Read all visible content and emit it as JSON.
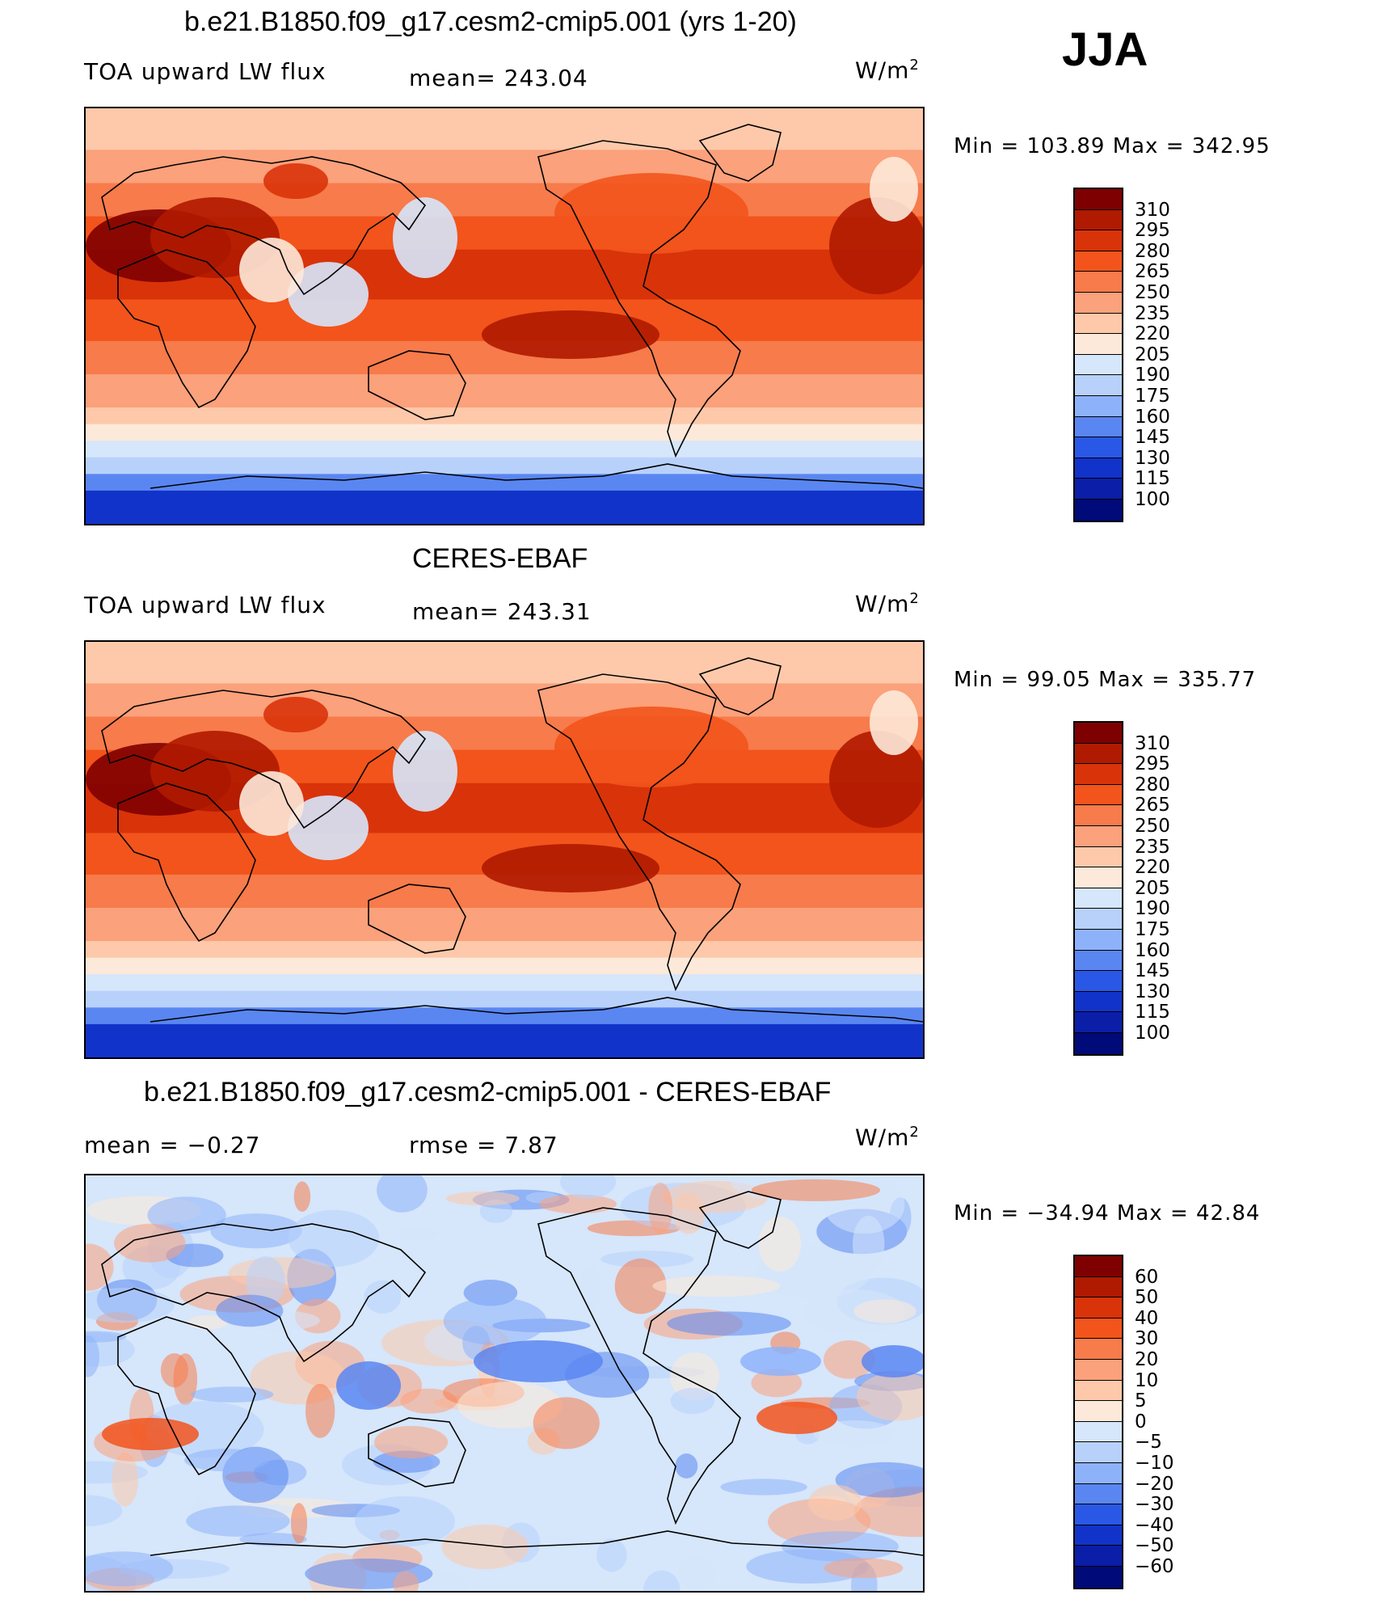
{
  "season": "JJA",
  "panels": [
    {
      "title": "b.e21.B1850.f09_g17.cesm2-cmip5.001 (yrs 1-20)",
      "left_label": "TOA upward LW flux",
      "center_label": "mean= 243.04",
      "unit": "W/m",
      "unit_sup": "2",
      "minmax": "Min  =  103.89  Max  =  342.95",
      "colorbar": {
        "labels": [
          "310",
          "295",
          "280",
          "265",
          "250",
          "235",
          "220",
          "205",
          "190",
          "175",
          "160",
          "145",
          "130",
          "115",
          "100"
        ],
        "colors": [
          "#7f0000",
          "#b01a00",
          "#d9330a",
          "#f2541c",
          "#f77b4b",
          "#fba17b",
          "#fdc9aa",
          "#fde9d9",
          "#d6e6fb",
          "#b8d1fb",
          "#8eb2fa",
          "#5a86f1",
          "#2a58e6",
          "#1233c9",
          "#0a1ea8",
          "#000a78"
        ]
      },
      "map_style": "abs"
    },
    {
      "title": "CERES-EBAF",
      "left_label": "TOA upward LW flux",
      "center_label": "mean= 243.31",
      "unit": "W/m",
      "unit_sup": "2",
      "minmax": "Min  =    99.05  Max  =  335.77",
      "colorbar": {
        "labels": [
          "310",
          "295",
          "280",
          "265",
          "250",
          "235",
          "220",
          "205",
          "190",
          "175",
          "160",
          "145",
          "130",
          "115",
          "100"
        ],
        "colors": [
          "#7f0000",
          "#b01a00",
          "#d9330a",
          "#f2541c",
          "#f77b4b",
          "#fba17b",
          "#fdc9aa",
          "#fde9d9",
          "#d6e6fb",
          "#b8d1fb",
          "#8eb2fa",
          "#5a86f1",
          "#2a58e6",
          "#1233c9",
          "#0a1ea8",
          "#000a78"
        ]
      },
      "map_style": "abs"
    },
    {
      "title": "b.e21.B1850.f09_g17.cesm2-cmip5.001 - CERES-EBAF",
      "left_label": "mean  =    −0.27",
      "center_label": "rmse  =      7.87",
      "unit": "W/m",
      "unit_sup": "2",
      "minmax": "Min  =  −34.94  Max  =    42.84",
      "colorbar": {
        "labels": [
          "60",
          "50",
          "40",
          "30",
          "20",
          "10",
          "5",
          "0",
          "−5",
          "−10",
          "−20",
          "−30",
          "−40",
          "−50",
          "−60"
        ],
        "colors": [
          "#7f0000",
          "#b01a00",
          "#d9330a",
          "#f2541c",
          "#f77b4b",
          "#fba17b",
          "#fdc9aa",
          "#fde9d9",
          "#d6e6fb",
          "#b8d1fb",
          "#8eb2fa",
          "#5a86f1",
          "#2a58e6",
          "#1233c9",
          "#0a1ea8",
          "#000a78"
        ]
      },
      "map_style": "diff"
    }
  ]
}
